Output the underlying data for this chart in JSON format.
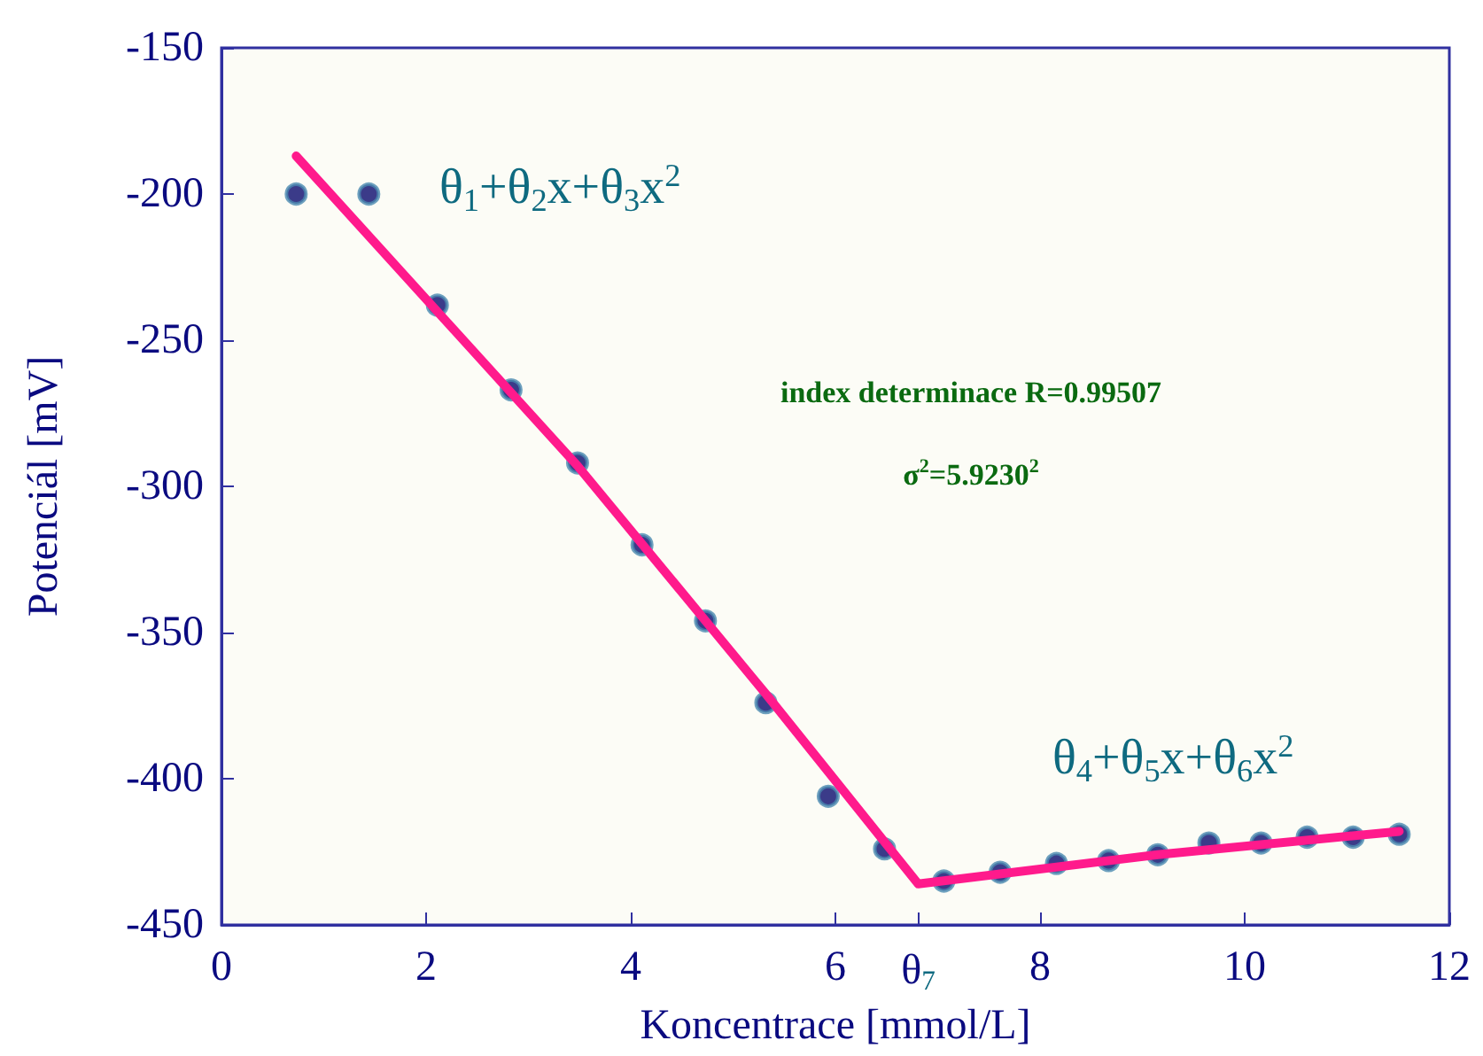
{
  "chart_data": {
    "type": "scatter",
    "xlabel": "Koncentrace [mmol/L]",
    "ylabel": "Potenciál [mV]",
    "xlim": [
      0,
      12
    ],
    "ylim": [
      -450,
      -150
    ],
    "xticks": [
      0,
      2,
      4,
      6,
      {
        "value": 6.81,
        "label": "θ$_{7}$"
      },
      8,
      10,
      12
    ],
    "yticks": [
      -450,
      -400,
      -350,
      -300,
      -250,
      -200,
      -150
    ],
    "grid": false,
    "series": [
      {
        "marker": "circle",
        "color": "#0a0a6e",
        "x": [
          0.73,
          1.44,
          2.11,
          2.83,
          3.48,
          4.11,
          4.73,
          5.32,
          5.93,
          6.48,
          7.06,
          7.61,
          8.16,
          8.67,
          9.15,
          9.65,
          10.16,
          10.61,
          11.06,
          11.51
        ],
        "values": [
          -200,
          -200,
          -238,
          -267,
          -292,
          -320,
          -346,
          -374,
          -406,
          -424,
          -435,
          -432,
          -429,
          -428,
          -426,
          -422,
          -422,
          -420,
          -420,
          -419
        ]
      },
      {
        "type": "line",
        "marker": "none",
        "line_style": "solid",
        "color": "#ff1a8c",
        "x": [
          0.73,
          3.48,
          5.32,
          6.81,
          9.15,
          11.51
        ],
        "values": [
          -187,
          -293,
          -371,
          -436,
          -426,
          -418
        ]
      }
    ],
    "annotations": [
      "θ$_{1}$+θ$_{2}$x+θ$_{3}$x$^{2}$",
      "θ$_{4}$+θ$_{5}$x+θ$_{6}$x$^{2}$",
      "index determinace R=0.99507",
      "σ$^{2}$=5.9230$^{2}$"
    ]
  }
}
